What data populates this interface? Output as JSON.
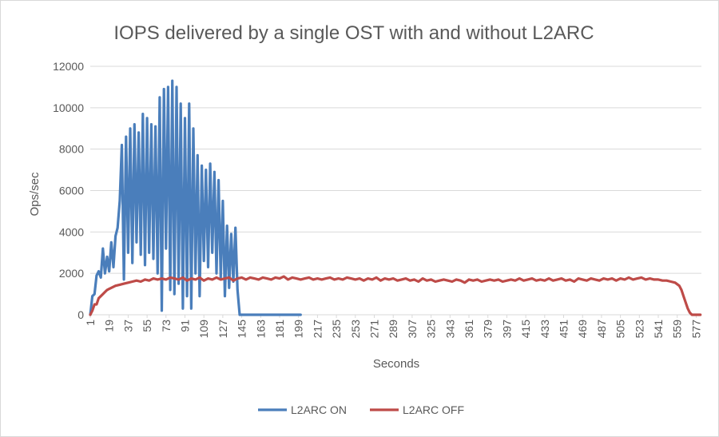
{
  "chart_data": {
    "type": "line",
    "title": "IOPS delivered by a single OST with and without L2ARC",
    "xlabel": "Seconds",
    "ylabel": "Ops/sec",
    "ylim": [
      0,
      12000
    ],
    "xlim": [
      1,
      582
    ],
    "y_ticks": [
      0,
      2000,
      4000,
      6000,
      8000,
      10000,
      12000
    ],
    "y_tick_labels": [
      "0",
      "2000",
      "4000",
      "6000",
      "8000",
      "10000",
      "12000"
    ],
    "x_ticks": [
      1,
      19,
      37,
      55,
      73,
      91,
      109,
      127,
      145,
      163,
      181,
      199,
      217,
      235,
      253,
      271,
      289,
      307,
      325,
      343,
      361,
      379,
      397,
      415,
      433,
      451,
      469,
      487,
      505,
      523,
      541,
      559,
      577
    ],
    "x_tick_labels": [
      "1",
      "19",
      "37",
      "55",
      "73",
      "91",
      "109",
      "127",
      "145",
      "163",
      "181",
      "199",
      "217",
      "235",
      "253",
      "271",
      "289",
      "307",
      "325",
      "343",
      "361",
      "379",
      "397",
      "415",
      "433",
      "451",
      "469",
      "487",
      "505",
      "523",
      "541",
      "559",
      "577"
    ],
    "grid": true,
    "legend_position": "bottom",
    "series": [
      {
        "name": "L2ARC ON",
        "color": "#4a7ebb",
        "x": [
          1,
          3,
          5,
          7,
          9,
          11,
          13,
          15,
          17,
          19,
          21,
          23,
          25,
          27,
          29,
          31,
          33,
          35,
          37,
          39,
          41,
          43,
          45,
          47,
          49,
          51,
          53,
          55,
          57,
          59,
          61,
          63,
          65,
          67,
          69,
          71,
          73,
          75,
          77,
          79,
          81,
          83,
          85,
          87,
          89,
          91,
          93,
          95,
          97,
          99,
          101,
          103,
          105,
          107,
          109,
          111,
          113,
          115,
          117,
          119,
          121,
          123,
          125,
          127,
          129,
          131,
          133,
          135,
          137,
          139,
          141,
          143,
          145,
          147,
          149,
          151,
          153,
          155,
          157,
          159,
          161,
          163,
          165,
          167,
          169,
          171,
          173,
          175,
          177,
          179,
          181,
          183,
          185,
          187,
          189,
          191,
          193,
          195,
          197,
          199,
          201
        ],
        "y": [
          0,
          900,
          1000,
          1900,
          2100,
          1800,
          3200,
          2000,
          2800,
          2100,
          3500,
          2300,
          3800,
          4200,
          5500,
          8200,
          1700,
          8600,
          3000,
          9000,
          2500,
          9200,
          3500,
          8800,
          2900,
          9700,
          2400,
          9500,
          3000,
          9200,
          2700,
          9100,
          2000,
          10500,
          200,
          10900,
          3200,
          11000,
          1200,
          11300,
          1000,
          11000,
          1500,
          10200,
          300,
          9500,
          900,
          10200,
          300,
          9000,
          2000,
          7700,
          900,
          7200,
          2600,
          7000,
          2300,
          7300,
          3000,
          6900,
          2000,
          6500,
          1800,
          5500,
          900,
          4300,
          1300,
          3900,
          1600,
          4200,
          1200,
          0,
          0,
          0,
          0,
          0,
          0,
          0,
          0,
          0,
          0,
          0,
          0,
          0,
          0,
          0,
          0,
          0,
          0,
          0,
          0,
          0,
          0,
          0,
          0,
          0,
          0,
          0,
          0,
          0,
          0
        ]
      },
      {
        "name": "L2ARC OFF",
        "color": "#be4b48",
        "x": [
          1,
          3,
          5,
          7,
          9,
          11,
          13,
          15,
          17,
          19,
          21,
          25,
          29,
          33,
          37,
          41,
          45,
          49,
          53,
          57,
          61,
          65,
          69,
          73,
          77,
          81,
          85,
          89,
          93,
          97,
          101,
          105,
          109,
          113,
          117,
          121,
          125,
          129,
          133,
          137,
          141,
          145,
          149,
          153,
          157,
          161,
          165,
          169,
          173,
          177,
          181,
          185,
          189,
          193,
          197,
          201,
          205,
          209,
          213,
          217,
          221,
          225,
          229,
          233,
          237,
          241,
          245,
          249,
          253,
          257,
          261,
          265,
          269,
          273,
          277,
          281,
          285,
          289,
          293,
          297,
          301,
          305,
          309,
          313,
          317,
          321,
          325,
          329,
          333,
          337,
          341,
          345,
          349,
          353,
          357,
          361,
          365,
          369,
          373,
          377,
          381,
          385,
          389,
          393,
          397,
          401,
          405,
          409,
          413,
          417,
          421,
          425,
          429,
          433,
          437,
          441,
          445,
          449,
          453,
          457,
          461,
          465,
          469,
          473,
          477,
          481,
          485,
          489,
          493,
          497,
          501,
          505,
          509,
          513,
          517,
          521,
          525,
          529,
          533,
          537,
          541,
          545,
          549,
          553,
          557,
          561,
          563,
          565,
          567,
          569,
          571,
          573,
          575,
          577,
          579,
          581
        ],
        "y": [
          0,
          200,
          500,
          500,
          800,
          900,
          1000,
          1100,
          1200,
          1250,
          1300,
          1400,
          1450,
          1500,
          1550,
          1600,
          1650,
          1600,
          1700,
          1650,
          1750,
          1700,
          1750,
          1700,
          1800,
          1750,
          1700,
          1800,
          1650,
          1750,
          1700,
          1800,
          1650,
          1750,
          1700,
          1800,
          1700,
          1750,
          1800,
          1650,
          1750,
          1800,
          1700,
          1800,
          1750,
          1700,
          1800,
          1750,
          1700,
          1800,
          1750,
          1850,
          1700,
          1800,
          1750,
          1700,
          1750,
          1800,
          1700,
          1750,
          1700,
          1750,
          1800,
          1700,
          1750,
          1700,
          1800,
          1750,
          1700,
          1750,
          1650,
          1750,
          1700,
          1800,
          1650,
          1750,
          1700,
          1750,
          1650,
          1700,
          1750,
          1650,
          1700,
          1600,
          1750,
          1650,
          1700,
          1600,
          1650,
          1700,
          1650,
          1600,
          1700,
          1650,
          1550,
          1700,
          1650,
          1700,
          1600,
          1650,
          1700,
          1650,
          1700,
          1600,
          1650,
          1700,
          1650,
          1750,
          1650,
          1700,
          1750,
          1650,
          1700,
          1650,
          1750,
          1650,
          1700,
          1750,
          1650,
          1700,
          1600,
          1750,
          1700,
          1650,
          1750,
          1700,
          1650,
          1750,
          1700,
          1750,
          1650,
          1750,
          1700,
          1800,
          1700,
          1750,
          1800,
          1700,
          1750,
          1700,
          1700,
          1650,
          1650,
          1600,
          1550,
          1400,
          1200,
          900,
          600,
          300,
          100,
          0,
          0,
          0,
          0,
          0
        ]
      }
    ]
  }
}
